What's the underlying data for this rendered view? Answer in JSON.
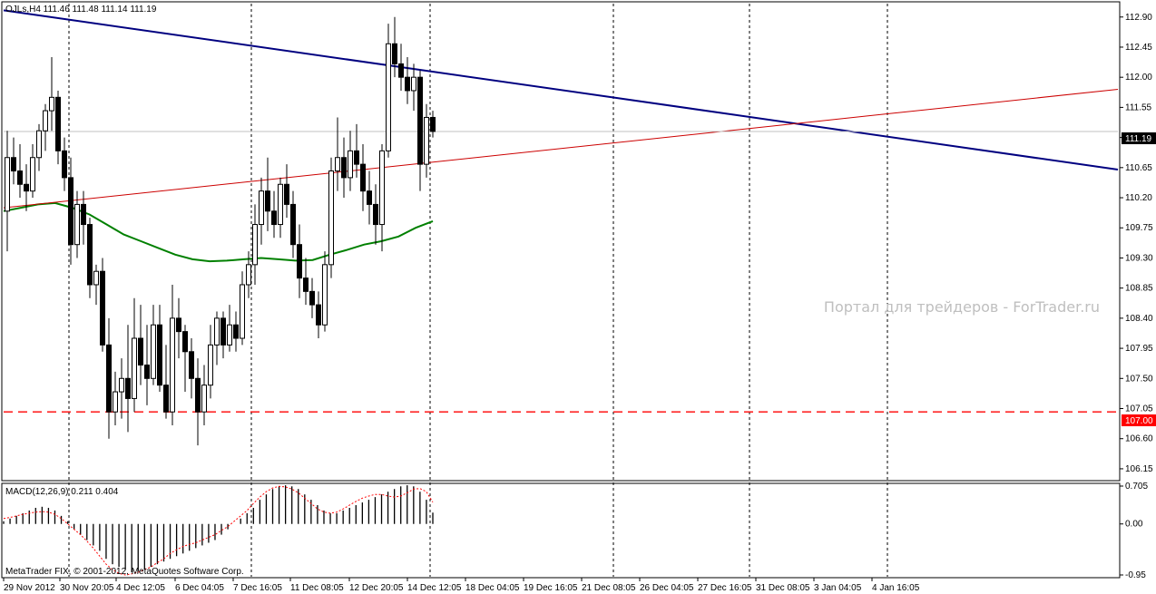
{
  "window": {
    "symbol_header": "OJLs,H4  111.46 111.48 111.14 111.19",
    "watermark": "Портал для трейдеров - ForTrader.ru",
    "copyright": "MetaTrader FIX, © 2001-2012, MetaQuotes Software Corp."
  },
  "chart_data": [
    {
      "type": "candlestick",
      "title": "OJLs,H4",
      "last": {
        "open": 111.46,
        "high": 111.48,
        "low": 111.14,
        "close": 111.19
      },
      "ylim": [
        106.0,
        113.1
      ],
      "y_ticks": [
        "112.90",
        "112.45",
        "112.00",
        "111.55",
        "111.10",
        "110.65",
        "110.20",
        "109.75",
        "109.30",
        "108.85",
        "108.40",
        "107.95",
        "107.50",
        "107.05",
        "106.60",
        "106.15"
      ],
      "x_ticks": [
        "29 Nov 2012",
        "30 Nov 20:05",
        "4 Dec 12:05",
        "6 Dec 04:05",
        "7 Dec 16:05",
        "11 Dec 08:05",
        "12 Dec 20:05",
        "14 Dec 12:05",
        "18 Dec 04:05",
        "19 Dec 16:05",
        "21 Dec 08:05",
        "26 Dec 04:05",
        "27 Dec 16:05",
        "31 Dec 08:05",
        "3 Jan 04:05",
        "4 Jan 16:05"
      ],
      "current_price_label": "111.19",
      "level_label": "107.00",
      "horizontal_level": 107.0,
      "current_price": 111.19,
      "trendlines": [
        {
          "color": "#000080",
          "from": [
            0,
            113.0
          ],
          "to": [
            1,
            110.62
          ]
        },
        {
          "color": "#cc0000",
          "from": [
            0,
            110.05
          ],
          "to": [
            1,
            111.82
          ]
        }
      ],
      "moving_average": {
        "color": "#008000",
        "values": [
          110.0,
          110.05,
          110.1,
          110.12,
          110.05,
          109.95,
          109.8,
          109.65,
          109.55,
          109.45,
          109.35,
          109.28,
          109.25,
          109.26,
          109.28,
          109.3,
          109.28,
          109.26,
          109.27,
          109.35,
          109.42,
          109.5,
          109.55,
          109.62,
          109.75,
          109.85
        ]
      },
      "candles": [
        [
          110.0,
          111.2,
          109.4,
          110.8
        ],
        [
          110.8,
          111.1,
          110.4,
          110.6
        ],
        [
          110.6,
          111.0,
          110.2,
          110.4
        ],
        [
          110.4,
          110.7,
          110.0,
          110.3
        ],
        [
          110.3,
          111.0,
          110.2,
          110.8
        ],
        [
          110.8,
          111.3,
          110.6,
          111.2
        ],
        [
          111.2,
          111.6,
          110.9,
          111.5
        ],
        [
          111.5,
          112.3,
          111.2,
          111.7
        ],
        [
          111.7,
          111.8,
          110.7,
          110.9
        ],
        [
          110.9,
          111.1,
          110.3,
          110.5
        ],
        [
          110.5,
          110.8,
          109.2,
          109.5
        ],
        [
          109.5,
          110.3,
          109.3,
          110.1
        ],
        [
          110.1,
          110.3,
          109.5,
          109.8
        ],
        [
          109.8,
          109.9,
          108.7,
          108.9
        ],
        [
          108.9,
          109.2,
          108.6,
          109.1
        ],
        [
          109.1,
          109.3,
          107.9,
          108.0
        ],
        [
          108.0,
          108.4,
          106.6,
          107.0
        ],
        [
          107.0,
          107.6,
          106.8,
          107.3
        ],
        [
          107.3,
          107.8,
          106.9,
          107.5
        ],
        [
          107.5,
          108.3,
          106.7,
          107.2
        ],
        [
          107.2,
          108.7,
          107.0,
          108.1
        ],
        [
          108.1,
          108.6,
          107.4,
          107.7
        ],
        [
          107.7,
          108.3,
          107.1,
          107.5
        ],
        [
          107.5,
          108.6,
          107.4,
          108.3
        ],
        [
          108.3,
          108.6,
          107.3,
          107.4
        ],
        [
          107.4,
          108.0,
          106.9,
          107.0
        ],
        [
          107.0,
          108.9,
          106.8,
          108.4
        ],
        [
          108.4,
          108.7,
          107.8,
          108.2
        ],
        [
          108.2,
          108.3,
          107.3,
          107.9
        ],
        [
          107.9,
          108.1,
          107.2,
          107.5
        ],
        [
          107.5,
          107.8,
          106.5,
          107.0
        ],
        [
          107.0,
          107.7,
          106.8,
          107.4
        ],
        [
          107.4,
          108.3,
          107.2,
          108.0
        ],
        [
          108.0,
          108.5,
          107.7,
          108.4
        ],
        [
          108.4,
          108.5,
          107.8,
          108.0
        ],
        [
          108.0,
          108.6,
          107.9,
          108.3
        ],
        [
          108.3,
          108.5,
          107.9,
          108.1
        ],
        [
          108.1,
          109.1,
          108.0,
          108.9
        ],
        [
          108.9,
          109.4,
          108.7,
          109.2
        ],
        [
          109.2,
          110.1,
          108.9,
          109.8
        ],
        [
          109.8,
          110.5,
          109.5,
          110.3
        ],
        [
          110.3,
          110.8,
          109.7,
          110.0
        ],
        [
          110.0,
          110.3,
          109.6,
          109.8
        ],
        [
          109.8,
          110.5,
          109.6,
          110.4
        ],
        [
          110.4,
          110.7,
          109.9,
          110.1
        ],
        [
          110.1,
          110.3,
          109.3,
          109.5
        ],
        [
          109.5,
          109.8,
          108.7,
          109.0
        ],
        [
          109.0,
          109.3,
          108.6,
          108.8
        ],
        [
          108.8,
          109.0,
          108.4,
          108.6
        ],
        [
          108.6,
          108.8,
          108.1,
          108.3
        ],
        [
          108.3,
          109.4,
          108.2,
          109.2
        ],
        [
          109.2,
          110.8,
          109.0,
          110.6
        ],
        [
          110.6,
          111.4,
          110.3,
          110.8
        ],
        [
          110.8,
          111.1,
          110.2,
          110.5
        ],
        [
          110.5,
          111.2,
          110.3,
          110.9
        ],
        [
          110.9,
          111.3,
          110.5,
          110.7
        ],
        [
          110.7,
          111.0,
          110.0,
          110.3
        ],
        [
          110.3,
          110.6,
          109.8,
          110.1
        ],
        [
          110.1,
          110.4,
          109.5,
          109.8
        ],
        [
          109.8,
          111.0,
          109.4,
          110.9
        ],
        [
          110.9,
          112.8,
          110.8,
          112.5
        ],
        [
          112.5,
          112.9,
          112.0,
          112.2
        ],
        [
          112.2,
          112.5,
          111.8,
          112.0
        ],
        [
          112.0,
          112.3,
          111.6,
          111.8
        ],
        [
          111.8,
          112.2,
          111.5,
          112.0
        ],
        [
          112.0,
          112.1,
          110.3,
          110.7
        ],
        [
          110.7,
          111.6,
          110.5,
          111.4
        ],
        [
          111.4,
          111.5,
          111.1,
          111.19
        ]
      ]
    },
    {
      "type": "histogram",
      "title": "MACD(12,26,9) 0.211 0.404",
      "ylim": [
        -0.95,
        0.705
      ],
      "y_ticks": [
        "0.705",
        "0.00",
        "-0.95"
      ],
      "histogram": [
        0.05,
        0.1,
        0.15,
        0.2,
        0.25,
        0.3,
        0.32,
        0.3,
        0.25,
        0.15,
        0.05,
        -0.1,
        -0.2,
        -0.3,
        -0.4,
        -0.5,
        -0.65,
        -0.75,
        -0.8,
        -0.85,
        -0.9,
        -0.88,
        -0.85,
        -0.8,
        -0.75,
        -0.7,
        -0.65,
        -0.6,
        -0.55,
        -0.5,
        -0.45,
        -0.4,
        -0.35,
        -0.3,
        -0.2,
        -0.1,
        0.0,
        0.1,
        0.2,
        0.3,
        0.45,
        0.55,
        0.65,
        0.7,
        0.72,
        0.7,
        0.65,
        0.55,
        0.45,
        0.35,
        0.25,
        0.2,
        0.2,
        0.25,
        0.3,
        0.35,
        0.4,
        0.45,
        0.5,
        0.55,
        0.6,
        0.65,
        0.7,
        0.72,
        0.7,
        0.6,
        0.45,
        0.211
      ],
      "signal": [
        0.1,
        0.12,
        0.15,
        0.18,
        0.2,
        0.22,
        0.23,
        0.22,
        0.18,
        0.1,
        0.0,
        -0.1,
        -0.2,
        -0.32,
        -0.45,
        -0.6,
        -0.75,
        -0.85,
        -0.92,
        -0.95,
        -0.93,
        -0.9,
        -0.85,
        -0.8,
        -0.72,
        -0.65,
        -0.55,
        -0.48,
        -0.42,
        -0.38,
        -0.35,
        -0.3,
        -0.25,
        -0.2,
        -0.12,
        -0.05,
        0.05,
        0.15,
        0.25,
        0.38,
        0.5,
        0.6,
        0.67,
        0.7,
        0.69,
        0.65,
        0.58,
        0.48,
        0.38,
        0.28,
        0.22,
        0.2,
        0.22,
        0.28,
        0.35,
        0.42,
        0.48,
        0.52,
        0.55,
        0.55,
        0.52,
        0.5,
        0.52,
        0.58,
        0.65,
        0.66,
        0.6,
        0.404
      ]
    }
  ]
}
